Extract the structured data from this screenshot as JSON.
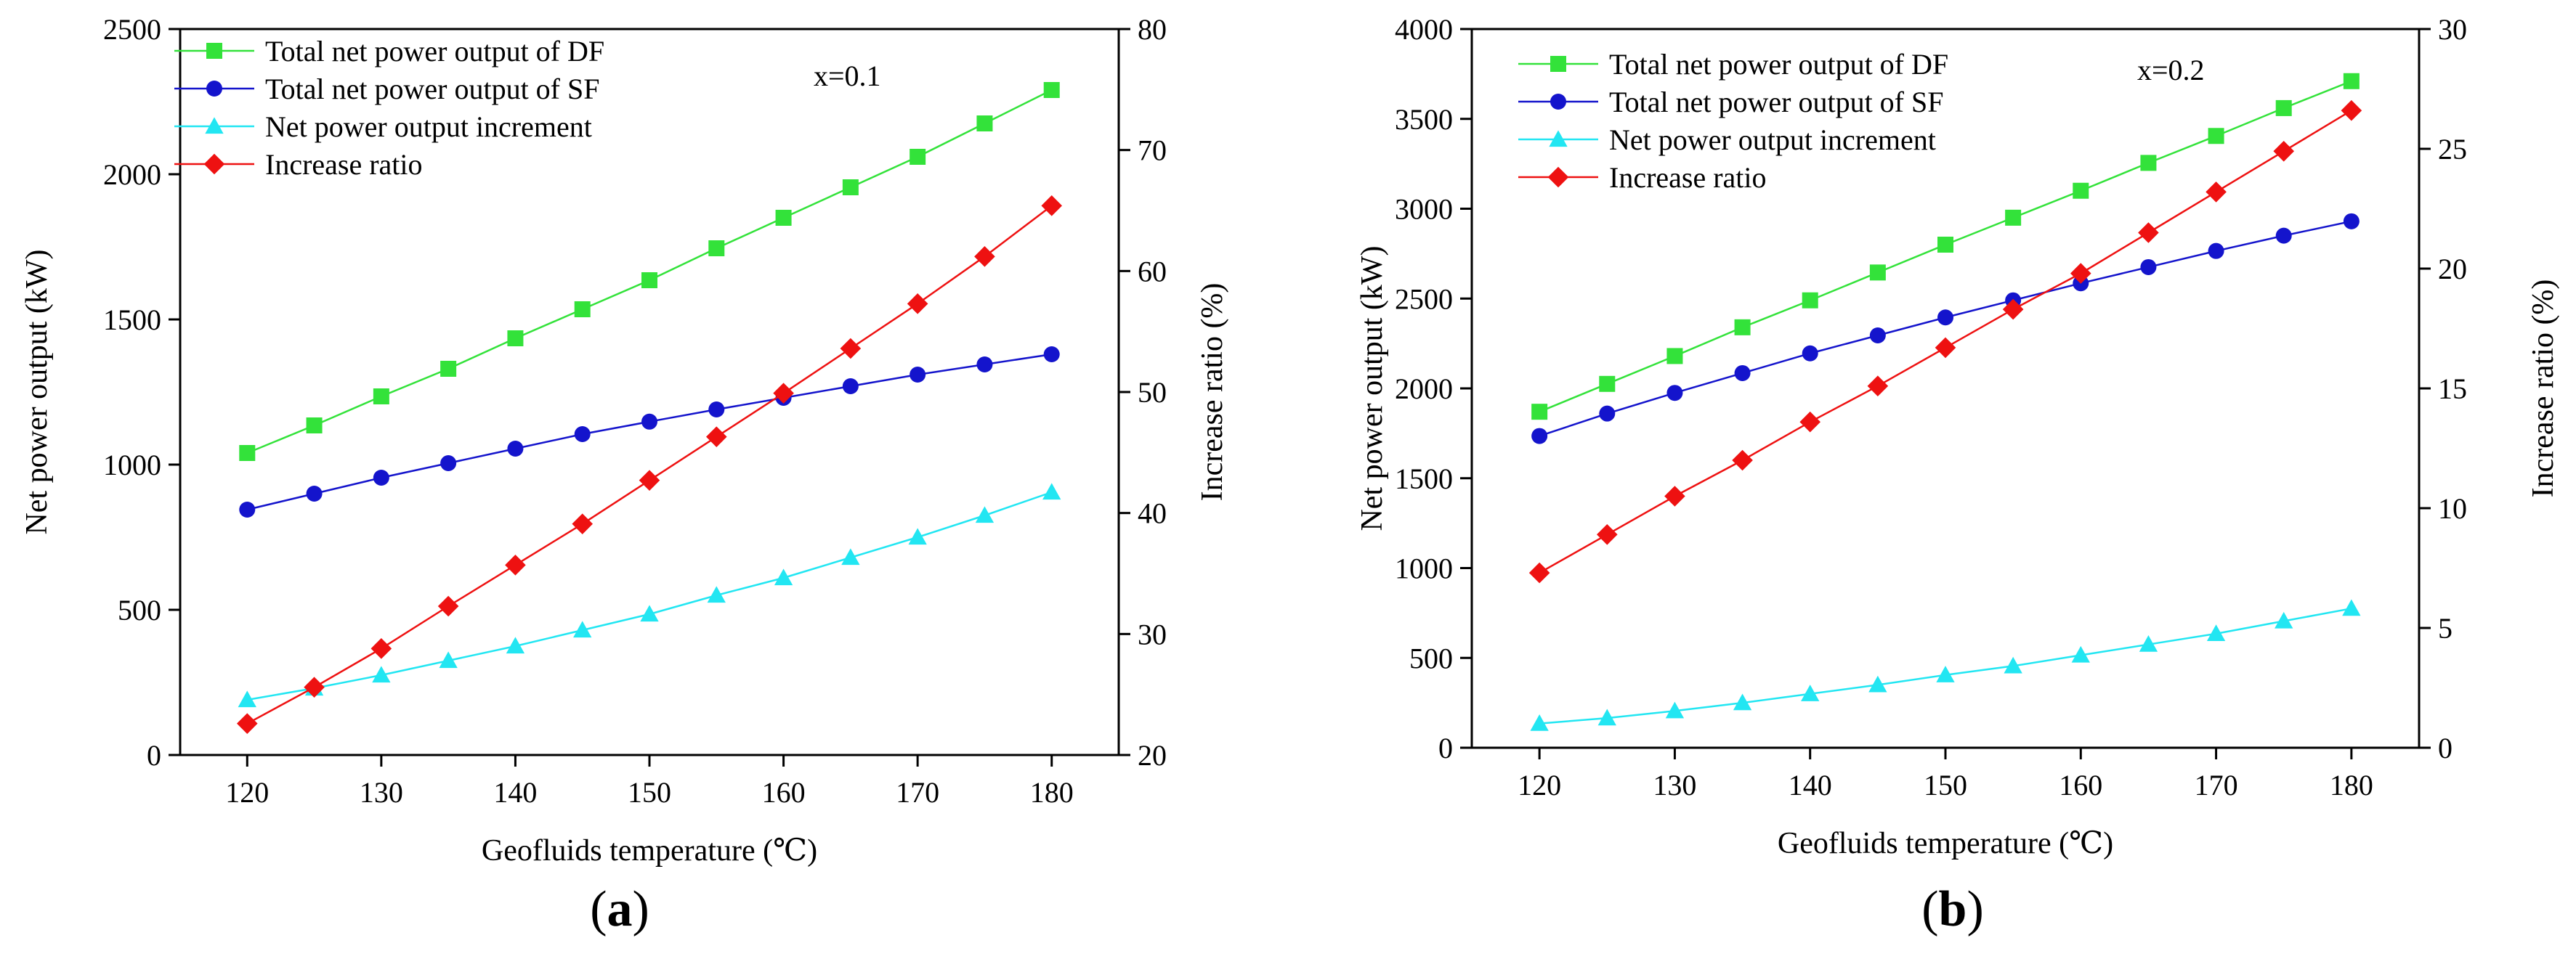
{
  "chart_data": [
    {
      "type": "line",
      "panel_label": "a",
      "annotation": "x=0.1",
      "xlabel": "Geofluids temperature (℃)",
      "ylabel": "Net power output (kW)",
      "y2label": "Increase ratio (%)",
      "xlim": [
        115,
        185
      ],
      "xticks": [
        120,
        130,
        140,
        150,
        160,
        170,
        180
      ],
      "ylim": [
        0,
        2500
      ],
      "yticks": [
        0,
        500,
        1000,
        1500,
        2000,
        2500
      ],
      "y2lim": [
        20,
        80
      ],
      "y2ticks": [
        20,
        30,
        40,
        50,
        60,
        70,
        80
      ],
      "grid": false,
      "legend_position": "top-left",
      "x": [
        120,
        125,
        130,
        135,
        140,
        145,
        150,
        155,
        160,
        165,
        170,
        175,
        180
      ],
      "series": [
        {
          "name": "Total net power output of DF",
          "axis": "left",
          "marker": "square",
          "color": "#33e23a",
          "values": [
            1040,
            1135,
            1235,
            1330,
            1435,
            1535,
            1635,
            1745,
            1850,
            1955,
            2060,
            2175,
            2290
          ]
        },
        {
          "name": "Total net power output of SF",
          "axis": "left",
          "marker": "circle",
          "color": "#1414cc",
          "values": [
            845,
            900,
            955,
            1005,
            1055,
            1105,
            1148,
            1190,
            1230,
            1270,
            1310,
            1345,
            1380
          ]
        },
        {
          "name": "Net power output  increment",
          "axis": "left",
          "marker": "triangle",
          "color": "#22e6f2",
          "values": [
            190,
            230,
            275,
            325,
            375,
            430,
            485,
            550,
            610,
            680,
            750,
            825,
            905
          ]
        },
        {
          "name": "Increase ratio",
          "axis": "right",
          "marker": "diamond",
          "color": "#ee1111",
          "values": [
            22.6,
            25.6,
            28.8,
            32.3,
            35.7,
            39.1,
            42.7,
            46.3,
            49.9,
            53.6,
            57.3,
            61.2,
            65.4
          ]
        }
      ]
    },
    {
      "type": "line",
      "panel_label": "b",
      "annotation": "x=0.2",
      "xlabel": "Geofluids temperature (℃)",
      "ylabel": "Net power output (kW)",
      "y2label": "Increase ratio (%)",
      "xlim": [
        115,
        185
      ],
      "xticks": [
        120,
        130,
        140,
        150,
        160,
        170,
        180
      ],
      "ylim": [
        0,
        4000
      ],
      "yticks": [
        0,
        500,
        1000,
        1500,
        2000,
        2500,
        3000,
        3500,
        4000
      ],
      "y2lim": [
        0,
        30
      ],
      "y2ticks": [
        0,
        5,
        10,
        15,
        20,
        25,
        30
      ],
      "grid": false,
      "legend_position": "top-left",
      "x": [
        120,
        125,
        130,
        135,
        140,
        145,
        150,
        155,
        160,
        165,
        170,
        175,
        180
      ],
      "series": [
        {
          "name": "Total net power output of DF",
          "axis": "left",
          "marker": "square",
          "color": "#33e23a",
          "values": [
            1870,
            2025,
            2180,
            2340,
            2490,
            2645,
            2800,
            2950,
            3100,
            3255,
            3405,
            3560,
            3710
          ]
        },
        {
          "name": "Total net power output of SF",
          "axis": "left",
          "marker": "circle",
          "color": "#1414cc",
          "values": [
            1735,
            1860,
            1975,
            2085,
            2195,
            2295,
            2395,
            2490,
            2585,
            2675,
            2765,
            2850,
            2930
          ]
        },
        {
          "name": "Net power output  increment",
          "axis": "left",
          "marker": "triangle",
          "color": "#22e6f2",
          "values": [
            135,
            165,
            205,
            250,
            300,
            350,
            405,
            455,
            515,
            575,
            635,
            705,
            775
          ]
        },
        {
          "name": "Increase ratio",
          "axis": "right",
          "marker": "diamond",
          "color": "#ee1111",
          "values": [
            7.3,
            8.9,
            10.5,
            12.0,
            13.6,
            15.1,
            16.7,
            18.3,
            19.8,
            21.5,
            23.2,
            24.9,
            26.6
          ]
        }
      ]
    }
  ]
}
